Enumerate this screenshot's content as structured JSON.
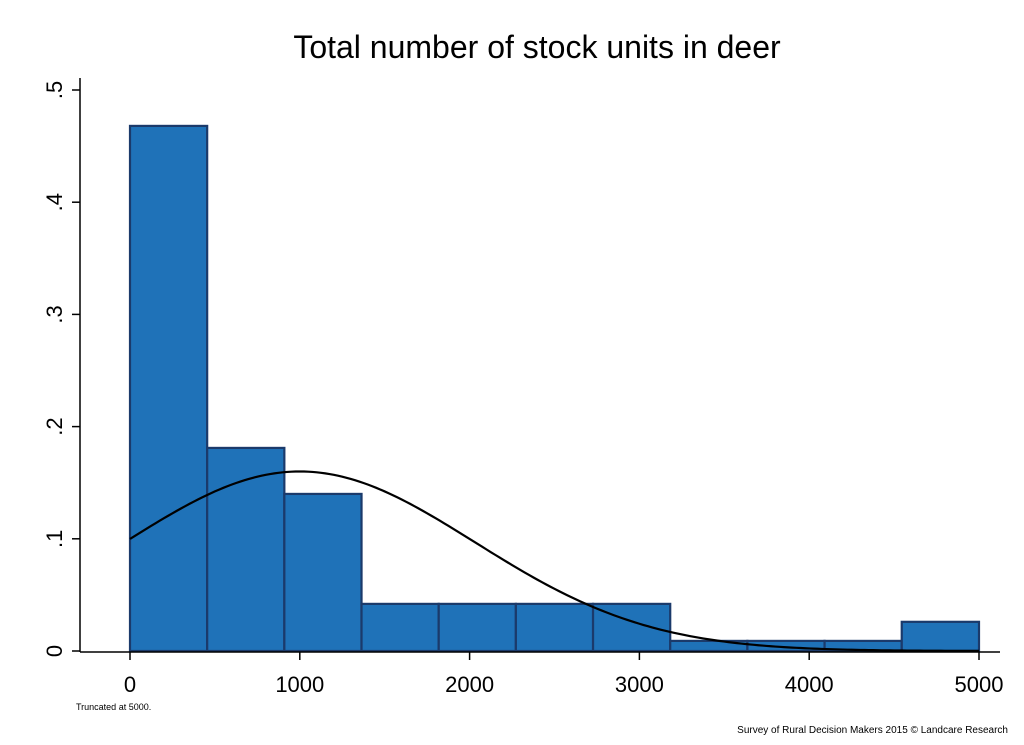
{
  "chart_data": {
    "type": "bar",
    "title": "Total number of stock units in deer",
    "xlabel": "",
    "ylabel": "",
    "xlim": [
      0,
      5000
    ],
    "ylim": [
      0,
      0.5
    ],
    "x_ticks": [
      0,
      1000,
      2000,
      3000,
      4000,
      5000
    ],
    "x_tick_labels": [
      "0",
      "1000",
      "2000",
      "3000",
      "4000",
      "5000"
    ],
    "y_ticks": [
      0,
      0.1,
      0.2,
      0.3,
      0.4,
      0.5
    ],
    "y_tick_labels": [
      "0",
      ".1",
      ".2",
      ".3",
      ".4",
      ".5"
    ],
    "bin_width": 454.5,
    "bins": [
      {
        "x0": 0,
        "x1": 454.5,
        "density": 0.468
      },
      {
        "x0": 454.5,
        "x1": 909,
        "density": 0.181
      },
      {
        "x0": 909,
        "x1": 1363.5,
        "density": 0.14
      },
      {
        "x0": 1363.5,
        "x1": 1818,
        "density": 0.042
      },
      {
        "x0": 1818,
        "x1": 2272.5,
        "density": 0.042
      },
      {
        "x0": 2272.5,
        "x1": 2727,
        "density": 0.042
      },
      {
        "x0": 2727,
        "x1": 3181.5,
        "density": 0.042
      },
      {
        "x0": 3181.5,
        "x1": 3636,
        "density": 0.009
      },
      {
        "x0": 3636,
        "x1": 4090.5,
        "density": 0.009
      },
      {
        "x0": 4090.5,
        "x1": 4545,
        "density": 0.009
      },
      {
        "x0": 4545,
        "x1": 5000,
        "density": 0.026
      }
    ],
    "normal_curve": {
      "mean": 1000,
      "sd": 1030,
      "peak_density": 0.16
    },
    "bar_color": "#1f72b8",
    "bar_edge_color": "#1b3a6b",
    "curve_color": "#000000",
    "grid": false,
    "legend": "none",
    "note": "Truncated at 5000.",
    "source": "Survey of Rural Decision Makers 2015 © Landcare Research"
  }
}
